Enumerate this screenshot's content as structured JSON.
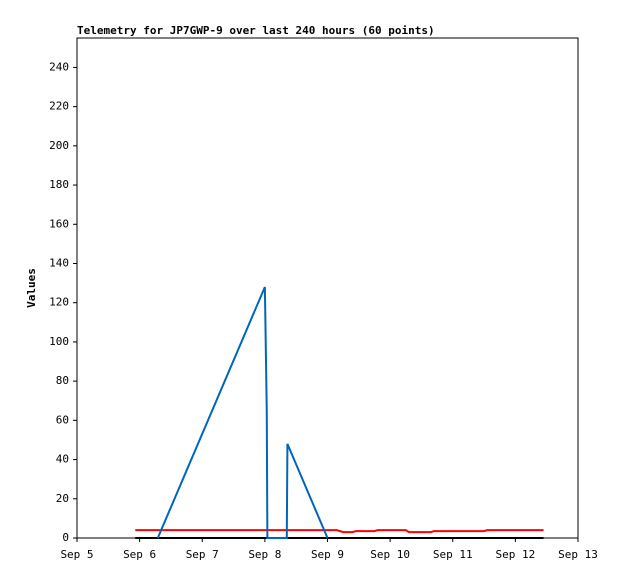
{
  "chart_data": {
    "type": "line",
    "title": "Telemetry for JP7GWP-9 over last 240 hours (60 points)",
    "ylabel": "Values",
    "xlim": [
      5,
      13
    ],
    "xticks": [
      {
        "value": 5,
        "label": "Sep 5"
      },
      {
        "value": 6,
        "label": "Sep 6"
      },
      {
        "value": 7,
        "label": "Sep 7"
      },
      {
        "value": 8,
        "label": "Sep 8"
      },
      {
        "value": 9,
        "label": "Sep 9"
      },
      {
        "value": 10,
        "label": "Sep 10"
      },
      {
        "value": 11,
        "label": "Sep 11"
      },
      {
        "value": 12,
        "label": "Sep 12"
      },
      {
        "value": 13,
        "label": "Sep 13"
      }
    ],
    "ylim": [
      0,
      255
    ],
    "yticks": [
      0,
      20,
      40,
      60,
      80,
      100,
      120,
      140,
      160,
      180,
      200,
      220,
      240
    ],
    "series": [
      {
        "color": "#ff0000",
        "x": [
          5.93,
          9.15,
          9.25,
          9.4,
          9.45,
          9.75,
          9.8,
          10.25,
          10.3,
          10.65,
          10.7,
          11.5,
          11.55,
          12.45
        ],
        "values": [
          4,
          4,
          3,
          3,
          3.5,
          3.5,
          4,
          4,
          3,
          3,
          3.5,
          3.5,
          4,
          4
        ]
      },
      {
        "color": "#000000",
        "x": [
          5.93,
          12.45
        ],
        "values": [
          0,
          0
        ]
      },
      {
        "color": "#0066bb",
        "x": [
          6.29,
          8.0,
          8.03,
          8.04,
          8.35,
          8.36,
          9.0
        ],
        "values": [
          0,
          128,
          65,
          0,
          0,
          48,
          0
        ]
      }
    ]
  }
}
